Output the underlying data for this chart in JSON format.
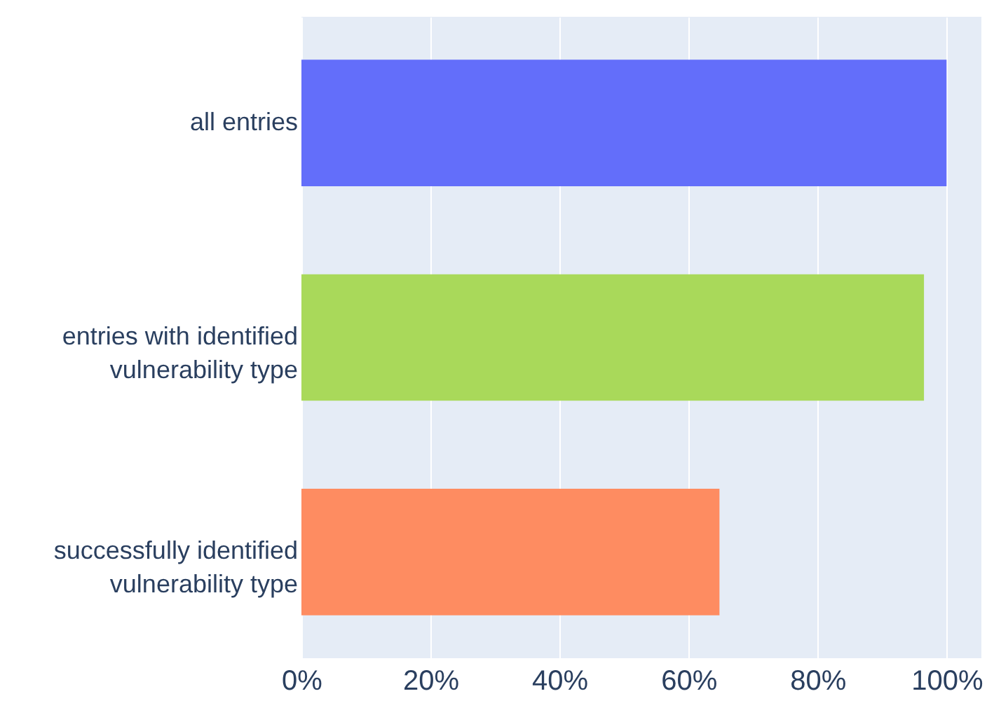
{
  "chart_data": {
    "type": "bar",
    "orientation": "horizontal",
    "categories": [
      "all entries",
      "entries with identified vulnerability type",
      "successfully identified vulnerability type"
    ],
    "values": [
      100,
      96.5,
      64.8
    ],
    "colors": [
      "#636efa",
      "#a9d95a",
      "#fe8c61"
    ],
    "xlim": [
      0,
      105.4
    ],
    "xticks": [
      {
        "value": 0,
        "label": "0%"
      },
      {
        "value": 20,
        "label": "20%"
      },
      {
        "value": 40,
        "label": "40%"
      },
      {
        "value": 60,
        "label": "60%"
      },
      {
        "value": 80,
        "label": "80%"
      },
      {
        "value": 100,
        "label": "100%"
      }
    ],
    "grid": "x"
  }
}
